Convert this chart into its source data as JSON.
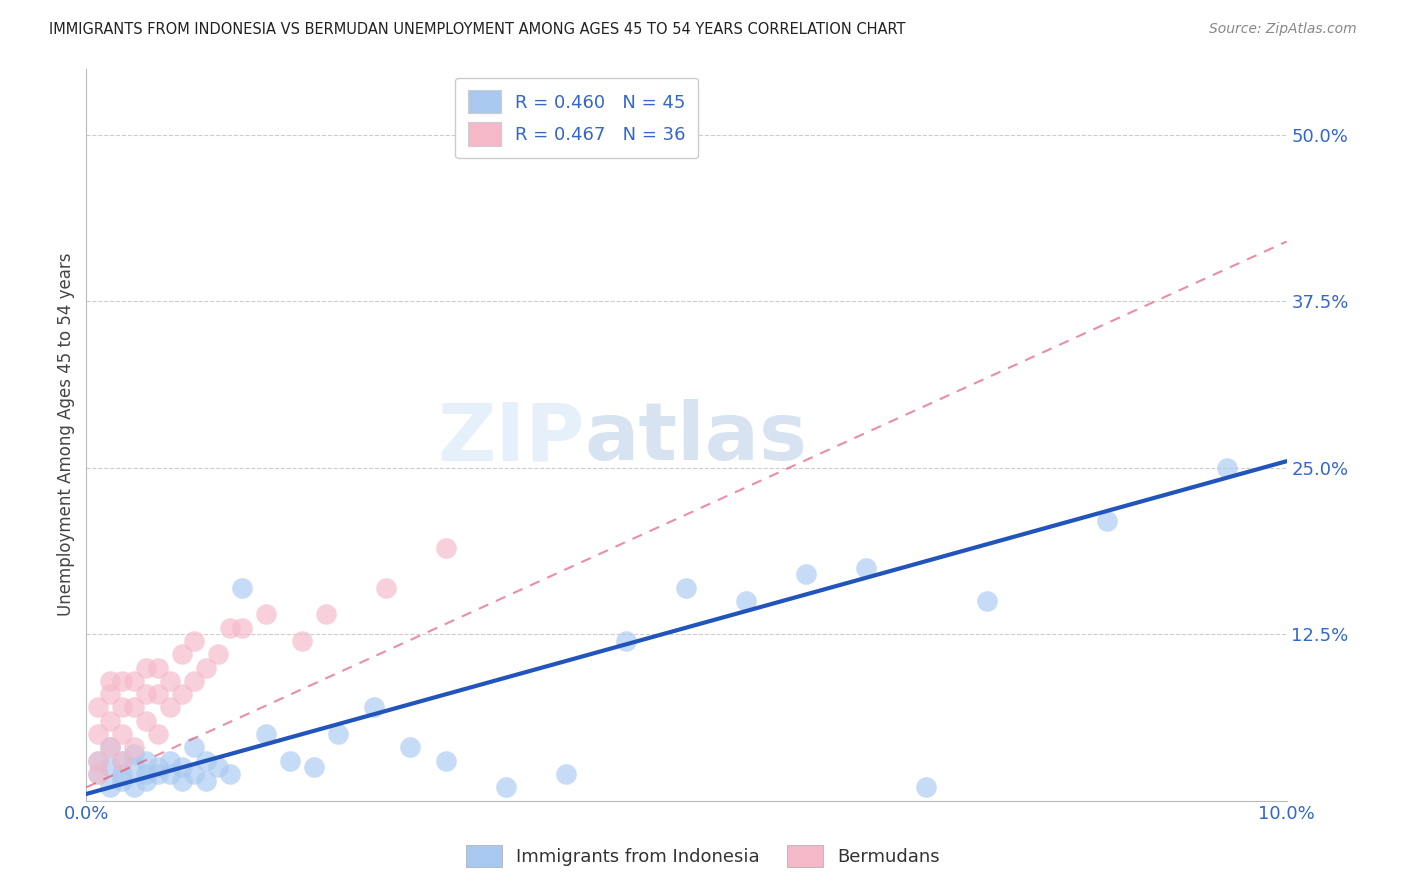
{
  "title": "IMMIGRANTS FROM INDONESIA VS BERMUDAN UNEMPLOYMENT AMONG AGES 45 TO 54 YEARS CORRELATION CHART",
  "source": "Source: ZipAtlas.com",
  "ylabel": "Unemployment Among Ages 45 to 54 years",
  "xlim": [
    0.0,
    0.1
  ],
  "ylim": [
    0.0,
    0.55
  ],
  "xticks": [
    0.0,
    0.02,
    0.04,
    0.06,
    0.08,
    0.1
  ],
  "yticks": [
    0.0,
    0.125,
    0.25,
    0.375,
    0.5
  ],
  "ytick_labels": [
    "",
    "12.5%",
    "25.0%",
    "37.5%",
    "50.0%"
  ],
  "xtick_labels": [
    "0.0%",
    "",
    "",
    "",
    "",
    "10.0%"
  ],
  "blue_color": "#a8c8f0",
  "blue_line_color": "#2255bb",
  "pink_color": "#f5b8c8",
  "pink_line_color": "#dd4466",
  "R_blue": 0.46,
  "N_blue": 45,
  "R_pink": 0.467,
  "N_pink": 36,
  "legend_label_blue": "Immigrants from Indonesia",
  "legend_label_pink": "Bermudans",
  "watermark_zip": "ZIP",
  "watermark_atlas": "atlas",
  "blue_scatter_x": [
    0.001,
    0.001,
    0.002,
    0.002,
    0.002,
    0.003,
    0.003,
    0.003,
    0.004,
    0.004,
    0.004,
    0.005,
    0.005,
    0.005,
    0.006,
    0.006,
    0.007,
    0.007,
    0.008,
    0.008,
    0.009,
    0.009,
    0.01,
    0.01,
    0.011,
    0.012,
    0.013,
    0.015,
    0.017,
    0.019,
    0.021,
    0.024,
    0.027,
    0.03,
    0.035,
    0.04,
    0.045,
    0.05,
    0.055,
    0.06,
    0.065,
    0.07,
    0.075,
    0.085,
    0.095
  ],
  "blue_scatter_y": [
    0.02,
    0.03,
    0.01,
    0.025,
    0.04,
    0.015,
    0.03,
    0.02,
    0.025,
    0.01,
    0.035,
    0.02,
    0.03,
    0.015,
    0.025,
    0.02,
    0.02,
    0.03,
    0.025,
    0.015,
    0.02,
    0.04,
    0.015,
    0.03,
    0.025,
    0.02,
    0.16,
    0.05,
    0.03,
    0.025,
    0.05,
    0.07,
    0.04,
    0.03,
    0.01,
    0.02,
    0.12,
    0.16,
    0.15,
    0.17,
    0.175,
    0.01,
    0.15,
    0.21,
    0.25
  ],
  "pink_scatter_x": [
    0.001,
    0.001,
    0.001,
    0.001,
    0.002,
    0.002,
    0.002,
    0.002,
    0.003,
    0.003,
    0.003,
    0.003,
    0.004,
    0.004,
    0.004,
    0.005,
    0.005,
    0.005,
    0.006,
    0.006,
    0.006,
    0.007,
    0.007,
    0.008,
    0.008,
    0.009,
    0.009,
    0.01,
    0.011,
    0.012,
    0.013,
    0.015,
    0.018,
    0.02,
    0.025,
    0.03
  ],
  "pink_scatter_y": [
    0.02,
    0.03,
    0.05,
    0.07,
    0.04,
    0.06,
    0.08,
    0.09,
    0.03,
    0.05,
    0.07,
    0.09,
    0.04,
    0.07,
    0.09,
    0.06,
    0.08,
    0.1,
    0.05,
    0.08,
    0.1,
    0.07,
    0.09,
    0.08,
    0.11,
    0.09,
    0.12,
    0.1,
    0.11,
    0.13,
    0.13,
    0.14,
    0.12,
    0.14,
    0.16,
    0.19
  ],
  "blue_line_x0": 0.0,
  "blue_line_y0": 0.005,
  "blue_line_x1": 0.1,
  "blue_line_y1": 0.255,
  "pink_line_x0": 0.0,
  "pink_line_y0": 0.01,
  "pink_line_x1": 0.1,
  "pink_line_y1": 0.42
}
